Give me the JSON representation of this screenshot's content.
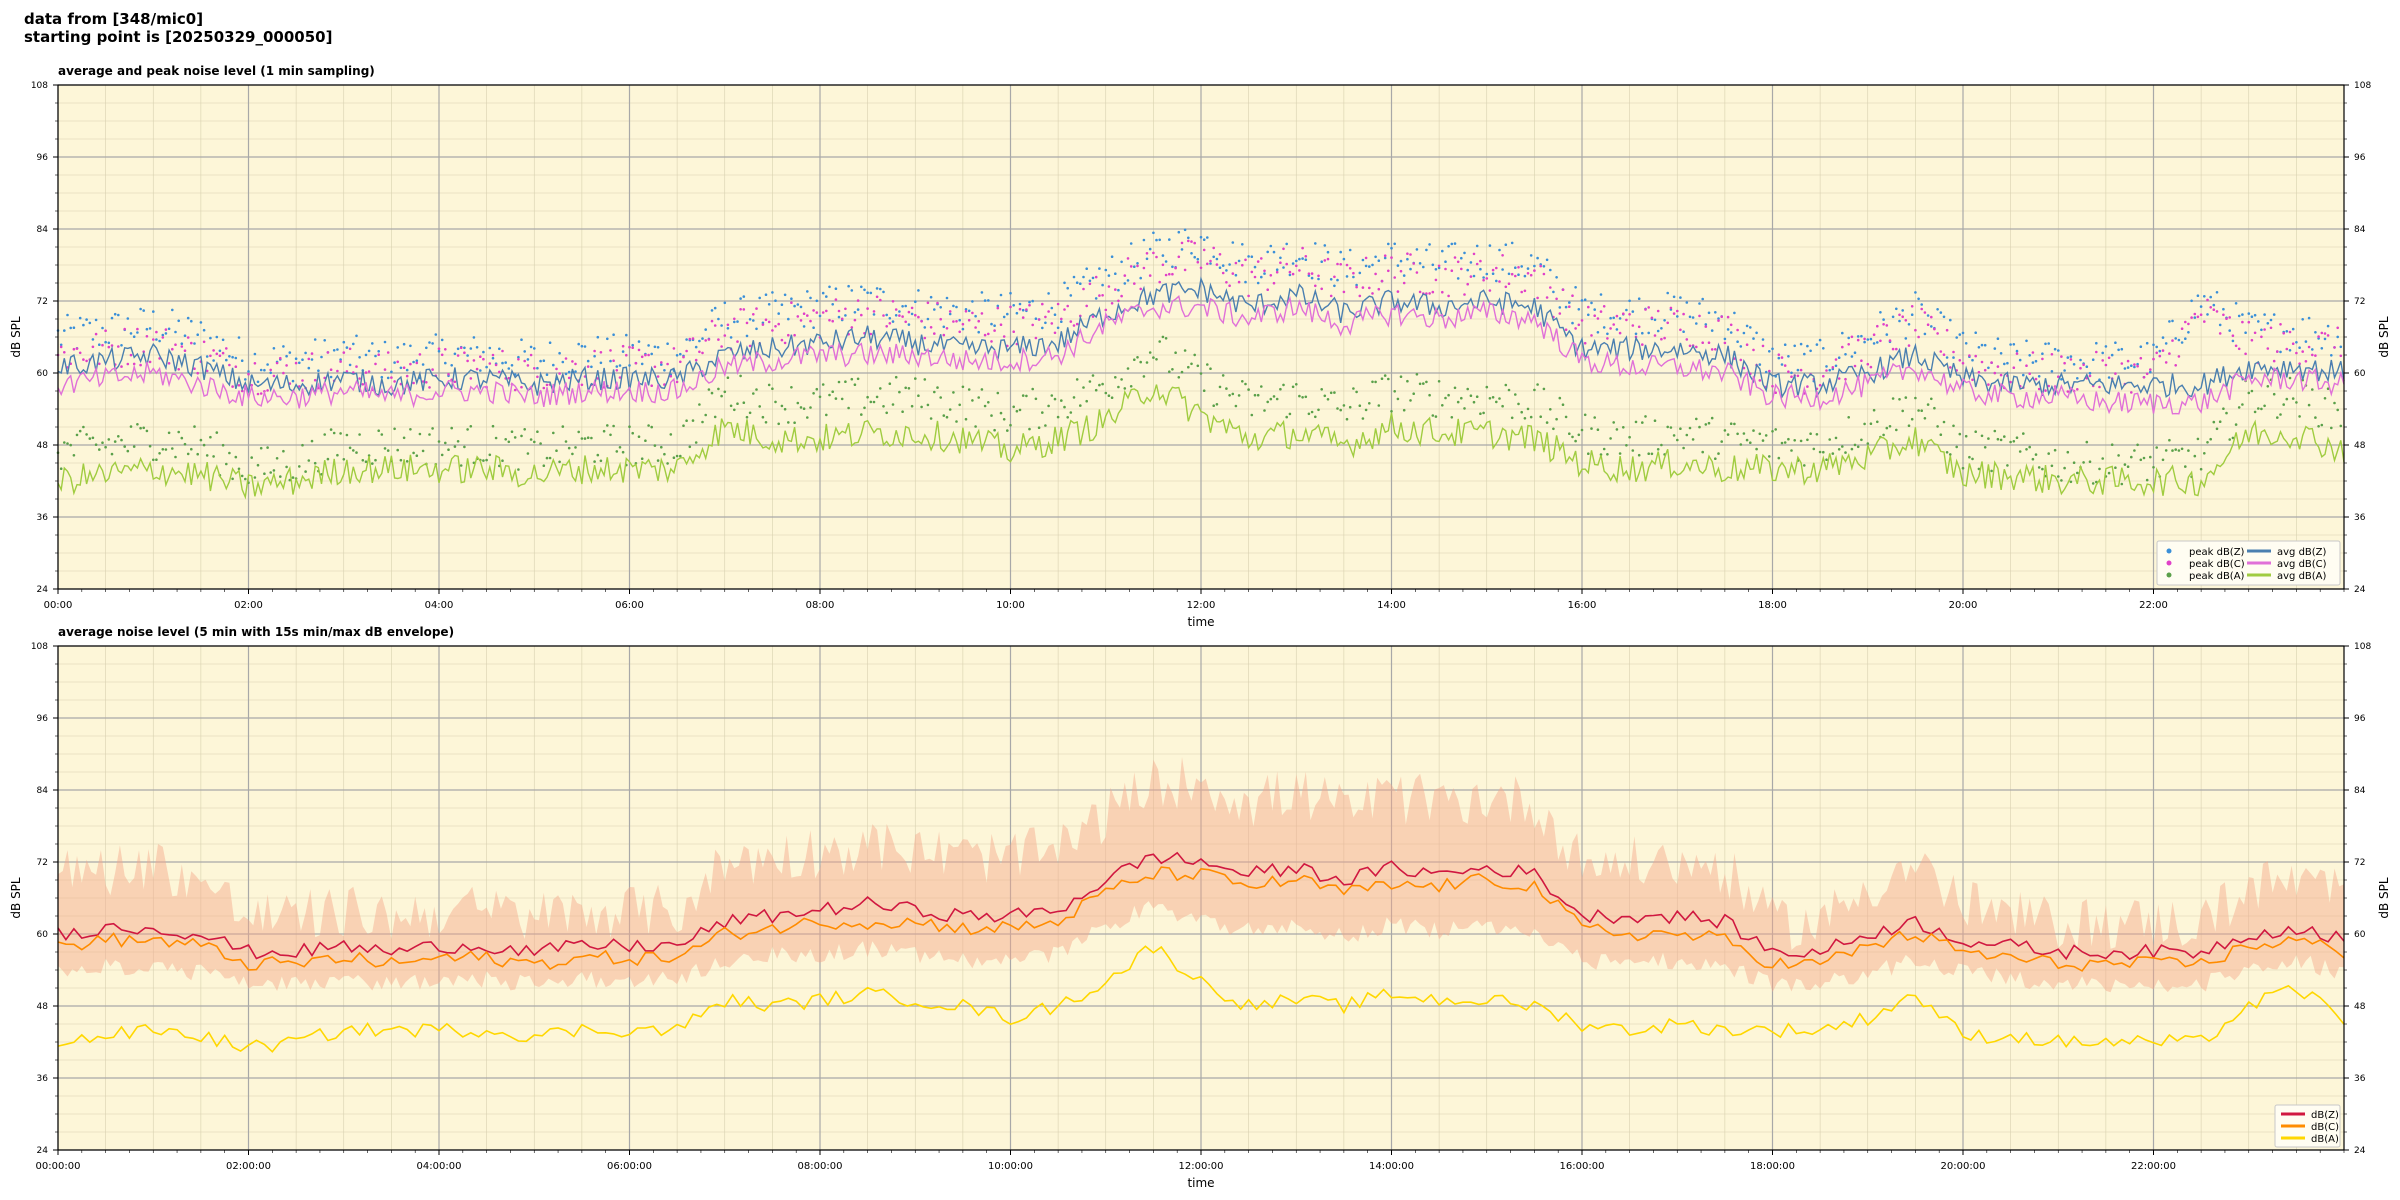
{
  "header": {
    "line1": "data from [348/mic0]",
    "line2": "starting point is [20250329_000050]"
  },
  "colors": {
    "background": "#fdf6d8",
    "peak_z": "#3a8fd8",
    "peak_c": "#e040c8",
    "peak_a": "#5aa04a",
    "avg_z": "#4a7fb0",
    "avg_c": "#e070d8",
    "avg_a": "#a0cc40",
    "dbz": "#d01840",
    "dbc": "#ff8c00",
    "dba": "#ffd700",
    "envelope": "#f4a68a"
  },
  "chart_data": [
    {
      "type": "line",
      "title": "average and peak noise level (1 min sampling)",
      "xlabel": "time",
      "ylabel": "dB SPL",
      "ylabel_right": "dB SPL",
      "xlim": [
        0,
        24
      ],
      "ylim": [
        24,
        108
      ],
      "x_ticks": [
        0,
        2,
        4,
        6,
        8,
        10,
        12,
        14,
        16,
        18,
        20,
        22
      ],
      "x_tick_labels": [
        "00:00",
        "02:00",
        "04:00",
        "06:00",
        "08:00",
        "10:00",
        "12:00",
        "14:00",
        "16:00",
        "18:00",
        "20:00",
        "22:00"
      ],
      "y_ticks": [
        24,
        36,
        48,
        60,
        72,
        84,
        96,
        108
      ],
      "grid": true,
      "legend_position": "bottom-right",
      "legend": [
        "peak dB(Z)",
        "peak dB(C)",
        "peak dB(A)",
        "avg dB(Z)",
        "avg dB(C)",
        "avg dB(A)"
      ],
      "x": [
        0,
        0.5,
        1,
        1.5,
        2,
        2.5,
        3,
        3.5,
        4,
        4.5,
        5,
        5.5,
        6,
        6.5,
        7,
        7.5,
        8,
        8.5,
        9,
        9.5,
        10,
        10.5,
        11,
        11.5,
        12,
        12.5,
        13,
        13.5,
        14,
        14.5,
        15,
        15.5,
        16,
        16.5,
        17,
        17.5,
        18,
        18.5,
        19,
        19.5,
        20,
        20.5,
        21,
        21.5,
        22,
        22.5,
        23,
        23.5,
        24
      ],
      "series": [
        {
          "name": "avg dB(Z)",
          "style": "line",
          "values": [
            61,
            62,
            63,
            61,
            58,
            58,
            59,
            58,
            59,
            59,
            58,
            59,
            59,
            59,
            63,
            64,
            65,
            66,
            65,
            64,
            64,
            65,
            70,
            73,
            74,
            71,
            73,
            70,
            72,
            71,
            72,
            71,
            64,
            64,
            64,
            63,
            58,
            58,
            60,
            63,
            59,
            58,
            58,
            58,
            58,
            58,
            61,
            61,
            60
          ]
        },
        {
          "name": "avg dB(C)",
          "style": "line",
          "values": [
            58,
            59,
            60,
            58,
            56,
            56,
            57,
            56,
            57,
            57,
            56,
            57,
            57,
            57,
            61,
            62,
            63,
            63,
            63,
            62,
            62,
            63,
            68,
            71,
            71,
            69,
            71,
            68,
            70,
            69,
            70,
            69,
            62,
            61,
            61,
            60,
            56,
            56,
            58,
            61,
            57,
            56,
            56,
            55,
            55,
            55,
            59,
            59,
            58
          ]
        },
        {
          "name": "avg dB(A)",
          "style": "line",
          "values": [
            42,
            43,
            44,
            43,
            41,
            42,
            44,
            44,
            44,
            44,
            43,
            44,
            44,
            44,
            51,
            49,
            49,
            50,
            50,
            49,
            47,
            49,
            52,
            58,
            53,
            49,
            50,
            48,
            51,
            50,
            50,
            49,
            45,
            44,
            45,
            44,
            44,
            44,
            46,
            49,
            43,
            43,
            42,
            42,
            42,
            42,
            50,
            50,
            47
          ]
        },
        {
          "name": "peak dB(Z)",
          "style": "scatter",
          "values": [
            66,
            67,
            68,
            66,
            62,
            62,
            63,
            62,
            63,
            63,
            62,
            63,
            63,
            63,
            69,
            70,
            71,
            72,
            71,
            70,
            70,
            71,
            76,
            80,
            82,
            78,
            80,
            77,
            79,
            78,
            79,
            78,
            70,
            70,
            70,
            69,
            62,
            62,
            66,
            70,
            64,
            62,
            62,
            62,
            62,
            72,
            67,
            67,
            66
          ]
        },
        {
          "name": "peak dB(C)",
          "style": "scatter",
          "values": [
            63,
            64,
            65,
            63,
            60,
            60,
            61,
            60,
            61,
            61,
            60,
            61,
            61,
            61,
            67,
            68,
            69,
            70,
            69,
            68,
            68,
            69,
            74,
            78,
            79,
            76,
            78,
            75,
            77,
            76,
            77,
            76,
            68,
            68,
            68,
            67,
            60,
            60,
            64,
            68,
            62,
            60,
            60,
            60,
            60,
            70,
            65,
            65,
            64
          ]
        },
        {
          "name": "peak dB(A)",
          "style": "scatter",
          "values": [
            47,
            48,
            49,
            48,
            44,
            45,
            48,
            48,
            48,
            48,
            47,
            48,
            48,
            48,
            57,
            55,
            55,
            56,
            56,
            55,
            53,
            55,
            58,
            64,
            59,
            55,
            56,
            54,
            57,
            56,
            56,
            55,
            50,
            49,
            50,
            49,
            48,
            48,
            51,
            55,
            47,
            47,
            45,
            45,
            45,
            46,
            56,
            56,
            53
          ]
        }
      ]
    },
    {
      "type": "line",
      "title": "average noise level (5 min with 15s min/max dB envelope)",
      "xlabel": "time",
      "ylabel": "dB SPL",
      "ylabel_right": "dB SPL",
      "xlim": [
        0,
        24
      ],
      "ylim": [
        24,
        108
      ],
      "x_ticks": [
        0,
        2,
        4,
        6,
        8,
        10,
        12,
        14,
        16,
        18,
        20,
        22
      ],
      "x_tick_labels": [
        "00:00:00",
        "02:00:00",
        "04:00:00",
        "06:00:00",
        "08:00:00",
        "10:00:00",
        "12:00:00",
        "14:00:00",
        "16:00:00",
        "18:00:00",
        "20:00:00",
        "22:00:00"
      ],
      "y_ticks": [
        24,
        36,
        48,
        60,
        72,
        84,
        96,
        108
      ],
      "grid": true,
      "legend_position": "bottom-right",
      "legend": [
        "dB(Z)",
        "dB(C)",
        "dB(A)"
      ],
      "x": [
        0,
        0.5,
        1,
        1.5,
        2,
        2.5,
        3,
        3.5,
        4,
        4.5,
        5,
        5.5,
        6,
        6.5,
        7,
        7.5,
        8,
        8.5,
        9,
        9.5,
        10,
        10.5,
        11,
        11.5,
        12,
        12.5,
        13,
        13.5,
        14,
        14.5,
        15,
        15.5,
        16,
        16.5,
        17,
        17.5,
        18,
        18.5,
        19,
        19.5,
        20,
        20.5,
        21,
        21.5,
        22,
        22.5,
        23,
        23.5,
        24
      ],
      "series": [
        {
          "name": "dB(Z)",
          "values": [
            60,
            61,
            61,
            60,
            57,
            57,
            58,
            57,
            58,
            58,
            57,
            58,
            58,
            58,
            62,
            63,
            64,
            65,
            64,
            63,
            63,
            64,
            69,
            73,
            72,
            70,
            71,
            69,
            71,
            70,
            71,
            70,
            63,
            63,
            63,
            62,
            57,
            57,
            60,
            62,
            59,
            58,
            57,
            57,
            57,
            57,
            60,
            61,
            59
          ]
        },
        {
          "name": "dB(C)",
          "values": [
            58,
            59,
            59,
            58,
            55,
            55,
            56,
            55,
            56,
            56,
            55,
            56,
            56,
            56,
            60,
            61,
            62,
            62,
            62,
            61,
            61,
            62,
            67,
            70,
            70,
            68,
            69,
            67,
            68,
            68,
            69,
            68,
            61,
            60,
            60,
            59,
            55,
            55,
            58,
            60,
            57,
            56,
            55,
            55,
            55,
            55,
            58,
            59,
            57
          ]
        },
        {
          "name": "dB(A)",
          "values": [
            42,
            43,
            44,
            43,
            41,
            42,
            44,
            44,
            44,
            44,
            43,
            44,
            44,
            44,
            49,
            48,
            49,
            50,
            49,
            48,
            46,
            48,
            52,
            58,
            52,
            48,
            49,
            48,
            50,
            49,
            49,
            48,
            45,
            44,
            45,
            44,
            44,
            44,
            46,
            50,
            43,
            43,
            42,
            42,
            42,
            42,
            48,
            51,
            46
          ]
        },
        {
          "name": "envelope max",
          "values": [
            68,
            69,
            70,
            67,
            61,
            61,
            62,
            61,
            62,
            62,
            61,
            62,
            62,
            62,
            70,
            71,
            72,
            73,
            72,
            71,
            71,
            72,
            78,
            83,
            84,
            80,
            82,
            79,
            81,
            80,
            81,
            80,
            70,
            70,
            70,
            69,
            60,
            60,
            66,
            70,
            63,
            61,
            60,
            60,
            60,
            60,
            66,
            67,
            65
          ]
        },
        {
          "name": "envelope min",
          "values": [
            55,
            56,
            56,
            55,
            53,
            53,
            54,
            53,
            54,
            54,
            53,
            54,
            54,
            54,
            57,
            58,
            58,
            59,
            58,
            57,
            57,
            58,
            63,
            66,
            64,
            62,
            63,
            61,
            63,
            62,
            63,
            62,
            57,
            57,
            57,
            56,
            53,
            53,
            55,
            57,
            55,
            54,
            53,
            53,
            53,
            53,
            56,
            57,
            55
          ]
        }
      ]
    }
  ]
}
